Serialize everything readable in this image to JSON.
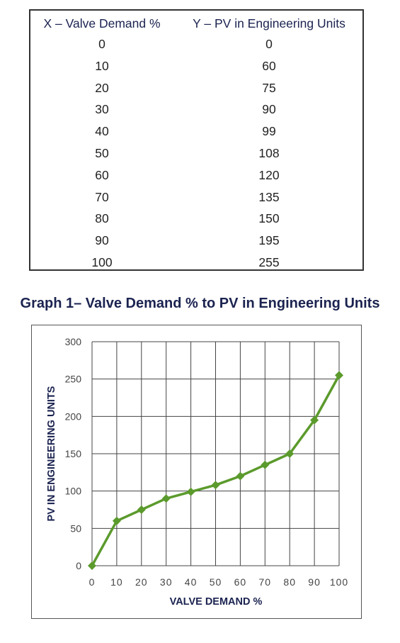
{
  "table": {
    "headers": [
      "X – Valve Demand %",
      "Y – PV in Engineering Units"
    ],
    "rows": [
      [
        "0",
        "0"
      ],
      [
        "10",
        "60"
      ],
      [
        "20",
        "75"
      ],
      [
        "30",
        "90"
      ],
      [
        "40",
        "99"
      ],
      [
        "50",
        "108"
      ],
      [
        "60",
        "120"
      ],
      [
        "70",
        "135"
      ],
      [
        "80",
        "150"
      ],
      [
        "90",
        "195"
      ],
      [
        "100",
        "255"
      ]
    ]
  },
  "graph_title": "Graph 1– Valve Demand % to PV in Engineering Units",
  "colors": {
    "series": "#5b9a2c",
    "heading": "#1b2350",
    "grid": "#444444"
  },
  "chart_data": {
    "type": "line",
    "title": "Graph 1– Valve Demand % to PV in Engineering Units",
    "xlabel": "VALVE DEMAND %",
    "ylabel": "PV IN ENGINEERING UNITS",
    "x": [
      0,
      10,
      20,
      30,
      40,
      50,
      60,
      70,
      80,
      90,
      100
    ],
    "series": [
      {
        "values": [
          0,
          60,
          75,
          90,
          99,
          108,
          120,
          135,
          150,
          195,
          255
        ]
      }
    ],
    "xlim": [
      0,
      100
    ],
    "ylim": [
      0,
      300
    ],
    "xticks": [
      "0",
      "10",
      "20",
      "30",
      "40",
      "50",
      "60",
      "70",
      "80",
      "90",
      "100"
    ],
    "yticks": [
      "0",
      "50",
      "100",
      "150",
      "200",
      "250",
      "300"
    ],
    "grid": true,
    "marker": "diamond"
  }
}
